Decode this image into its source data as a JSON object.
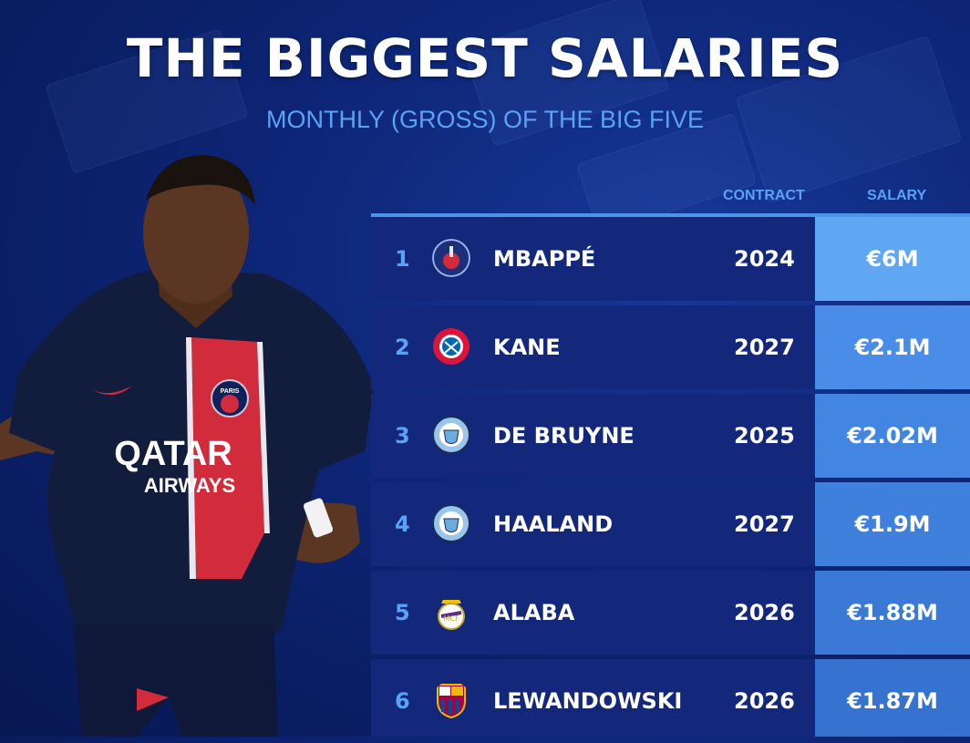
{
  "title": "THE BIGGEST SALARIES",
  "subtitle": "MONTHLY (GROSS) OF THE BIG FIVE",
  "columns": {
    "contract": "CONTRACT",
    "salary": "SALARY"
  },
  "jersey": {
    "sponsor_line1": "QATAR",
    "sponsor_line2": "AIRWAYS",
    "crest": "PARIS"
  },
  "rows": [
    {
      "rank": "1",
      "name": "MBAPPÉ",
      "contract": "2024",
      "salary": "€6M",
      "badge": "psg-badge-icon",
      "highlight": "#5fa6f3"
    },
    {
      "rank": "2",
      "name": "KANE",
      "contract": "2027",
      "salary": "€2.1M",
      "badge": "bayern-badge-icon",
      "highlight": "#4a8de8"
    },
    {
      "rank": "3",
      "name": "DE BRUYNE",
      "contract": "2025",
      "salary": "€2.02M",
      "badge": "man-city-badge-icon",
      "highlight": "#4286e2"
    },
    {
      "rank": "4",
      "name": "HAALAND",
      "contract": "2027",
      "salary": "€1.9M",
      "badge": "man-city-badge-icon",
      "highlight": "#3f80dc"
    },
    {
      "rank": "5",
      "name": "ALABA",
      "contract": "2026",
      "salary": "€1.88M",
      "badge": "real-madrid-badge-icon",
      "highlight": "#3a79d6"
    },
    {
      "rank": "6",
      "name": "LEWANDOWSKI",
      "contract": "2026",
      "salary": "€1.87M",
      "badge": "barcelona-badge-icon",
      "highlight": "#3673d0"
    }
  ],
  "colors": {
    "accent": "#5aa2f5",
    "row_bg": "#13287a",
    "background": "#0d2575"
  }
}
